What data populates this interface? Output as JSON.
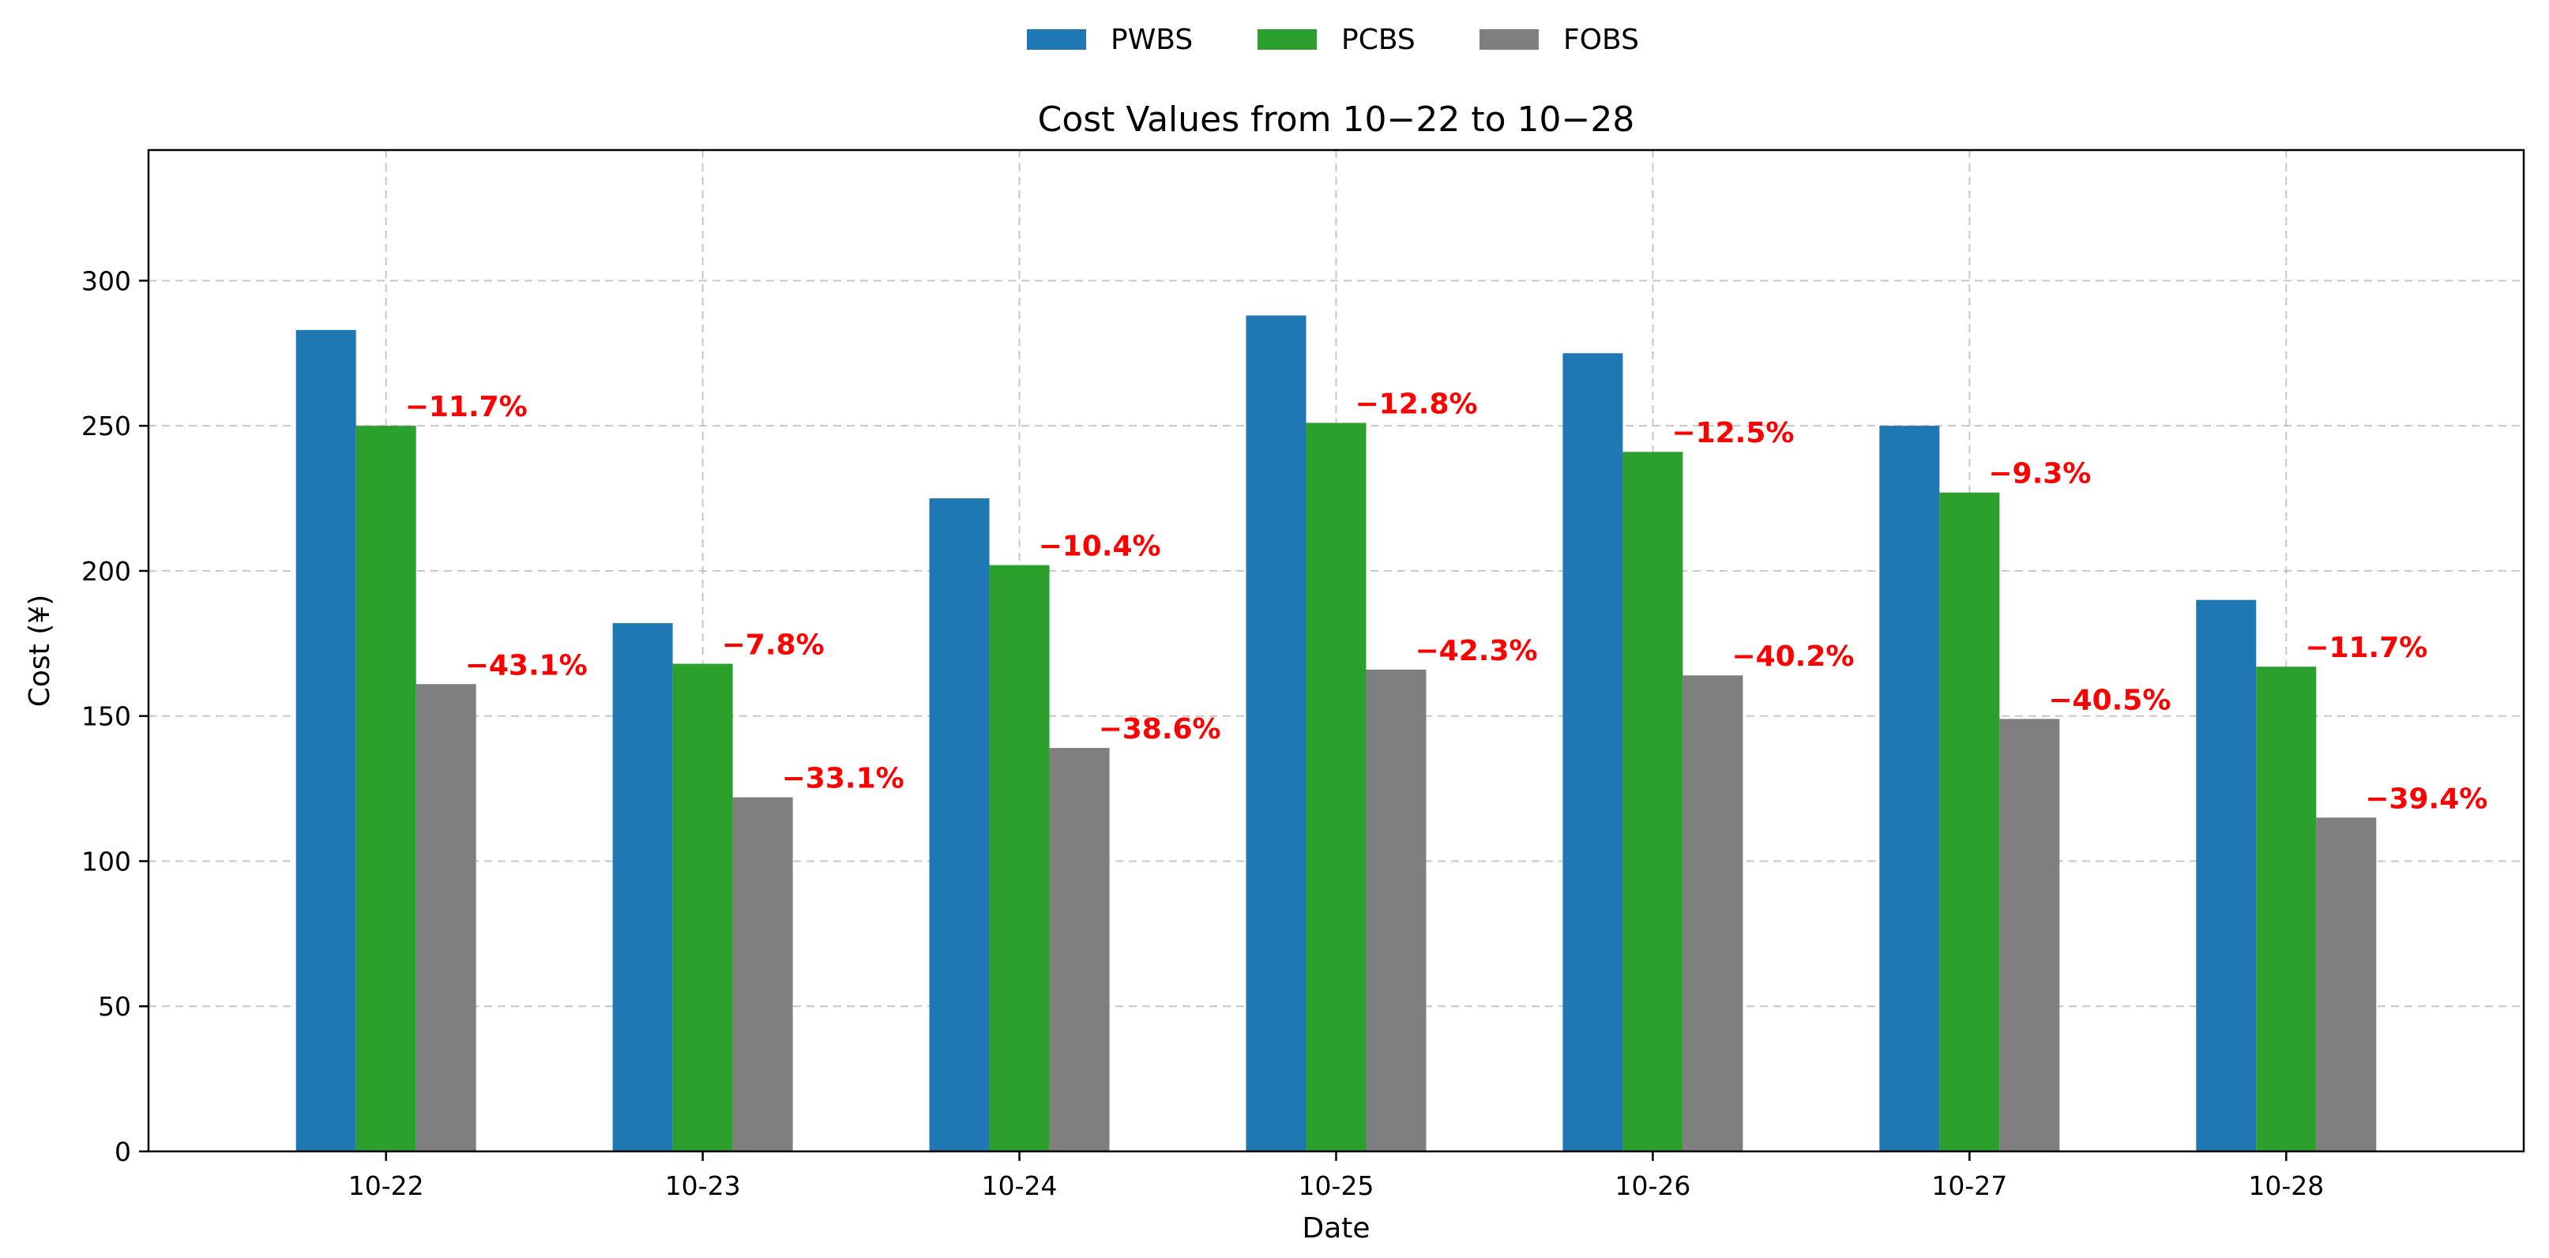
{
  "chart_data": {
    "type": "bar",
    "title": "Cost Values from 10−22 to 10−28",
    "xlabel": "Date",
    "ylabel": "Cost (¥)",
    "ylim": [
      0,
      345
    ],
    "yticks": [
      0,
      50,
      100,
      150,
      200,
      250,
      300
    ],
    "grid": true,
    "legend_position": "top-center",
    "categories": [
      "10-22",
      "10-23",
      "10-24",
      "10-25",
      "10-26",
      "10-27",
      "10-28"
    ],
    "series": [
      {
        "name": "PWBS",
        "color": "#1f77b4",
        "values": [
          283,
          182,
          225,
          288,
          275,
          250,
          190
        ]
      },
      {
        "name": "PCBS",
        "color": "#2ca02c",
        "values": [
          250,
          168,
          202,
          251,
          241,
          227,
          167
        ],
        "labels": [
          "−11.7%",
          "−7.8%",
          "−10.4%",
          "−12.8%",
          "−12.5%",
          "−9.3%",
          "−11.7%"
        ]
      },
      {
        "name": "FOBS",
        "color": "#7f7f7f",
        "values": [
          161,
          122,
          139,
          166,
          164,
          149,
          115
        ],
        "labels": [
          "−43.1%",
          "−33.1%",
          "−38.6%",
          "−42.3%",
          "−40.2%",
          "−40.5%",
          "−39.4%"
        ]
      }
    ],
    "label_color": "#ff0000"
  }
}
